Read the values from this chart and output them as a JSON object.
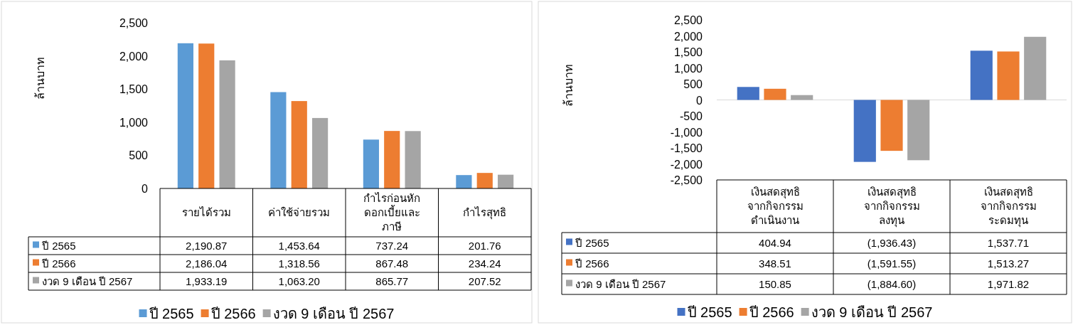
{
  "chart_data": [
    {
      "type": "bar",
      "ylabel": "ล้านบาท",
      "categories": [
        "รายได้รวม",
        "ค่าใช้จ่ายรวม",
        "กำไรก่อนหัก ดอกเบี้ยและ ภาษี",
        "กำไรสุทธิ"
      ],
      "series": [
        {
          "name": "ปี 2565",
          "color": "#5b9bd5",
          "values": [
            2190.87,
            1453.64,
            737.24,
            201.76
          ],
          "value_labels": [
            "2,190.87",
            "1,453.64",
            "737.24",
            "201.76"
          ]
        },
        {
          "name": "ปี 2566",
          "color": "#ed7d31",
          "values": [
            2186.04,
            1318.56,
            867.48,
            234.24
          ],
          "value_labels": [
            "2,186.04",
            "1,318.56",
            "867.48",
            "234.24"
          ]
        },
        {
          "name": "งวด 9 เดือน ปี 2567",
          "color": "#a5a5a5",
          "values": [
            1933.19,
            1063.2,
            865.77,
            207.52
          ],
          "value_labels": [
            "1,933.19",
            "1,063.20",
            "865.77",
            "207.52"
          ]
        }
      ],
      "ylim": [
        0,
        2500
      ],
      "yticks": [
        0,
        500,
        {
          "value": 1000,
          "label": "1,000"
        },
        {
          "value": 1500,
          "label": "1,500"
        },
        {
          "value": 2000,
          "label": "2,000"
        },
        {
          "value": 2500,
          "label": "2,500"
        }
      ],
      "legend": "bottom"
    },
    {
      "type": "bar",
      "ylabel": "ล้านบาท",
      "categories": [
        "เงินสดสุทธิ จากกิจกรรม ดำเนินงาน",
        "เงินสดสุทธิ จากกิจกรรม ลงทุน",
        "เงินสดสุทธิ จากกิจกรรม ระดมทุน"
      ],
      "series": [
        {
          "name": "ปี 2565",
          "color": "#4472c4",
          "values": [
            404.94,
            -1936.43,
            1537.71
          ],
          "value_labels": [
            "404.94",
            "(1,936.43)",
            "1,537.71"
          ]
        },
        {
          "name": "ปี 2566",
          "color": "#ed7d31",
          "values": [
            348.51,
            -1591.55,
            1513.27
          ],
          "value_labels": [
            "348.51",
            "(1,591.55)",
            "1,513.27"
          ]
        },
        {
          "name": "งวด 9 เดือน ปี 2567",
          "color": "#a5a5a5",
          "values": [
            150.85,
            -1884.6,
            1971.82
          ],
          "value_labels": [
            "150.85",
            "(1,884.60)",
            "1,971.82"
          ]
        }
      ],
      "ylim": [
        -2500,
        2500
      ],
      "yticks": [
        {
          "value": -2500,
          "label": "-2,500"
        },
        {
          "value": -2000,
          "label": "-2,000"
        },
        {
          "value": -1500,
          "label": "-1,500"
        },
        {
          "value": -1000,
          "label": "-1,000"
        },
        -500,
        0,
        500,
        {
          "value": 1000,
          "label": "1,000"
        },
        {
          "value": 1500,
          "label": "1,500"
        },
        {
          "value": 2000,
          "label": "2,000"
        },
        {
          "value": 2500,
          "label": "2,500"
        }
      ],
      "legend": "bottom"
    }
  ]
}
